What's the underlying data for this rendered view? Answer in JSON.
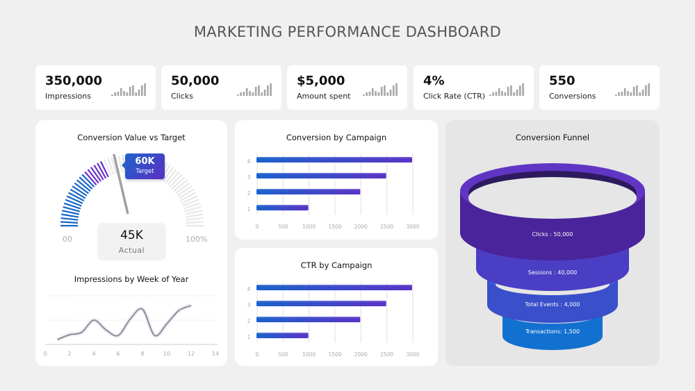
{
  "header": {
    "title": "MARKETING PERFORMANCE DASHBOARD"
  },
  "kpis": [
    {
      "value": "350,000",
      "label": "Impressions"
    },
    {
      "value": "50,000",
      "label": "Clicks"
    },
    {
      "value": "$5,000",
      "label": "Amount spent"
    },
    {
      "value": "4%",
      "label": "Click Rate (CTR)"
    },
    {
      "value": "550",
      "label": "Conversions"
    }
  ],
  "sparkline_heights": [
    2,
    5,
    6,
    11,
    7,
    5,
    13,
    15,
    5,
    9,
    15,
    18
  ],
  "gauge": {
    "title": "Conversion Value vs Target",
    "target_value": "60K",
    "target_label": "Target",
    "actual_value": "45K",
    "actual_label": "Actual",
    "min_label": "00",
    "max_label": "100%"
  },
  "colors": {
    "bg": "#f0f0f0",
    "blue": "#1565c8",
    "purple": "#5a2fc2",
    "grey_tick": "#e6e6e6",
    "funnel_bg": "#e6e6e6"
  },
  "chart_data": [
    {
      "type": "gauge",
      "title": "Conversion Value vs Target",
      "actual": 45000,
      "target": 60000,
      "labels": {
        "min": "00",
        "max": "100%",
        "actual": "45K",
        "target": "60K"
      }
    },
    {
      "type": "line",
      "title": "Impressions by Week of Year",
      "x": [
        1,
        2,
        3,
        4,
        5,
        6,
        7,
        8,
        9,
        10,
        11,
        12
      ],
      "values": [
        0.2,
        0.4,
        0.5,
        1.0,
        0.6,
        0.37,
        1.05,
        1.45,
        0.37,
        0.85,
        1.4,
        1.6
      ],
      "xticks": [
        0,
        2,
        4,
        6,
        8,
        10,
        12,
        14
      ],
      "xlim": [
        0,
        14
      ],
      "xlabel": "",
      "ylabel": "",
      "grid": true
    },
    {
      "type": "bar",
      "orientation": "horizontal",
      "title": "Conversion by Campaign",
      "categories": [
        "1",
        "2",
        "3",
        "4"
      ],
      "values": [
        1000,
        2000,
        2500,
        3000
      ],
      "xticks": [
        0,
        500,
        1000,
        1500,
        2000,
        2500,
        3000
      ],
      "xlim": [
        0,
        3000
      ]
    },
    {
      "type": "bar",
      "orientation": "horizontal",
      "title": "CTR by Campaign",
      "categories": [
        "1",
        "2",
        "3",
        "4"
      ],
      "values": [
        1000,
        2000,
        2500,
        3000
      ],
      "xticks": [
        0,
        500,
        1000,
        1500,
        2000,
        2500,
        3000
      ],
      "xlim": [
        0,
        3000
      ]
    },
    {
      "type": "funnel",
      "title": "Conversion Funnel",
      "stages": [
        {
          "label": "Clicks",
          "value": 50000,
          "text": "Clicks : 50,000"
        },
        {
          "label": "Sessions",
          "value": 40000,
          "text": "Sessions : 40,000"
        },
        {
          "label": "Total Events",
          "value": 4000,
          "text": "Total Events : 4,000"
        },
        {
          "label": "Transactions",
          "value": 1500,
          "text": "Transactions: 1,500"
        }
      ]
    }
  ],
  "line_chart": {
    "title": "Impressions by Week of Year"
  },
  "bar_chart_1": {
    "title": "Conversion by Campaign"
  },
  "bar_chart_2": {
    "title": "CTR by Campaign"
  },
  "funnel": {
    "title": "Conversion Funnel"
  }
}
